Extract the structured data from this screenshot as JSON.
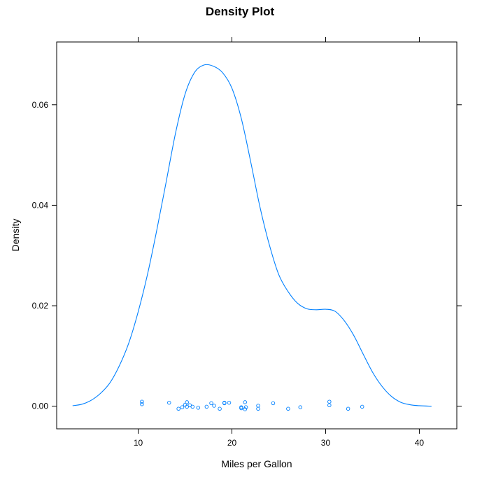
{
  "chart_data": {
    "type": "line",
    "title": "Density Plot",
    "xlabel": "Miles per Gallon",
    "ylabel": "Density",
    "xlim": [
      1.3,
      44.0
    ],
    "ylim": [
      -0.0045,
      0.0725
    ],
    "x_ticks": [
      10,
      20,
      30,
      40
    ],
    "x_tick_labels": [
      "10",
      "20",
      "30",
      "40"
    ],
    "y_ticks": [
      0.0,
      0.02,
      0.04,
      0.06
    ],
    "y_tick_labels": [
      "0.00",
      "0.02",
      "0.04",
      "0.06"
    ],
    "grid": false,
    "color": "#0080ff",
    "series": [
      {
        "x": [
          3.0,
          4.0,
          5.0,
          6.0,
          7.0,
          8.0,
          9.0,
          10.0,
          11.0,
          12.0,
          13.0,
          14.0,
          15.0,
          16.0,
          17.0,
          18.0,
          19.0,
          20.0,
          21.0,
          22.0,
          23.0,
          24.0,
          25.0,
          26.0,
          27.0,
          28.0,
          29.0,
          30.0,
          31.0,
          32.0,
          33.0,
          34.0,
          35.0,
          36.0,
          37.0,
          38.0,
          39.0,
          40.0,
          41.3
        ],
        "y": [
          0.0001,
          0.0004,
          0.0012,
          0.0026,
          0.0047,
          0.0081,
          0.0126,
          0.0188,
          0.0263,
          0.0352,
          0.0448,
          0.0545,
          0.0621,
          0.0664,
          0.0679,
          0.0677,
          0.0664,
          0.0633,
          0.0573,
          0.0487,
          0.0396,
          0.0321,
          0.0262,
          0.0228,
          0.0205,
          0.0194,
          0.0192,
          0.0193,
          0.0189,
          0.017,
          0.0141,
          0.0104,
          0.0068,
          0.004,
          0.002,
          0.0008,
          0.0003,
          0.0001,
          0.0
        ]
      }
    ],
    "rug": {
      "x": [
        10.4,
        10.4,
        13.3,
        14.3,
        14.7,
        15.0,
        15.2,
        15.2,
        15.5,
        15.8,
        16.4,
        17.3,
        17.8,
        18.1,
        18.7,
        19.2,
        19.2,
        19.7,
        21.0,
        21.0,
        21.4,
        21.4,
        21.5,
        22.8,
        22.8,
        24.4,
        26.0,
        27.3,
        30.4,
        30.4,
        32.4,
        33.9
      ],
      "y": [
        0.0009,
        0.0004,
        0.0007,
        -0.0005,
        -0.0002,
        0.0003,
        0.0008,
        -0.0001,
        0.0002,
        -0.0001,
        -0.0003,
        -0.0001,
        0.0006,
        0.0001,
        -0.0005,
        0.0006,
        0.0007,
        0.0007,
        -0.0002,
        -0.0004,
        0.0008,
        -0.0006,
        -0.0002,
        0.0001,
        -0.0005,
        0.0006,
        -0.0005,
        -0.0002,
        0.0009,
        0.0002,
        -0.0005,
        -0.0001
      ]
    }
  }
}
